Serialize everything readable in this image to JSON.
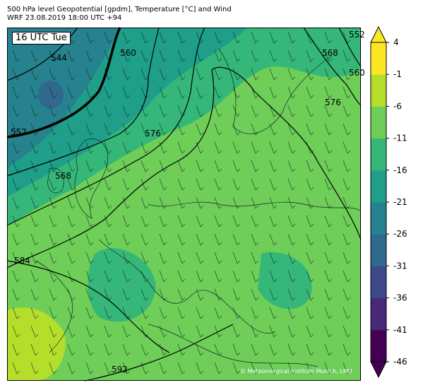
{
  "header": {
    "title_line1": "500 hPa level Geopotential [gpdm], Temperature [°C] and Wind",
    "title_line2": "WRF 23.08.2019 18:00 UTC +94"
  },
  "map": {
    "time_label": "16 UTC Tue",
    "credit": "© Meteorological Institute Munich, LMU",
    "contour_labels": [
      "544",
      "552",
      "560",
      "568",
      "576",
      "584",
      "592",
      "568",
      "576",
      "560",
      "552"
    ]
  },
  "colorbar": {
    "levels": [
      -46,
      -41,
      -36,
      -31,
      -26,
      -21,
      -16,
      -11,
      -6,
      -1,
      4
    ],
    "tick_labels": [
      "4",
      "-1",
      "-6",
      "-11",
      "-16",
      "-21",
      "-26",
      "-31",
      "-36",
      "-41",
      "-46"
    ],
    "colors": [
      "#440154",
      "#482878",
      "#3e4989",
      "#31688e",
      "#26828e",
      "#1f9e89",
      "#35b779",
      "#6ece58",
      "#b5de2b",
      "#fde725"
    ],
    "extend": "both"
  },
  "colors": {
    "cold_core": "#31688e",
    "cool": "#26828e",
    "mid": "#1f9e89",
    "mild": "#35b779",
    "warm": "#6ece58",
    "hot": "#b5de2b"
  }
}
